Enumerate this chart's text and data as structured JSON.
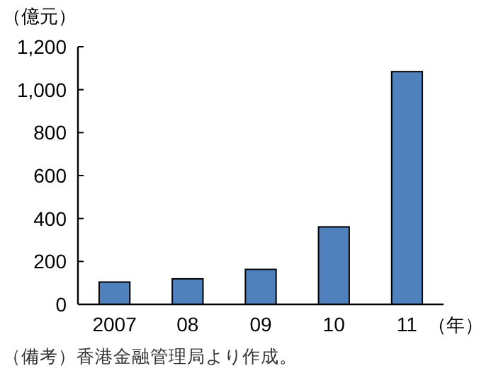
{
  "chart_data": {
    "type": "bar",
    "ylabel": "（億元）",
    "xlabel": "（年）",
    "categories": [
      "2007",
      "08",
      "09",
      "10",
      "11"
    ],
    "values": [
      104,
      119,
      163,
      361,
      1084
    ],
    "color": "#4f81bd",
    "ylim": [
      0,
      1200
    ],
    "yticks": [
      0,
      200,
      400,
      600,
      800,
      {
        "value": 1000,
        "label": "1,000"
      },
      {
        "value": 1200,
        "label": "1,200"
      }
    ],
    "grid": false,
    "annotations": [
      "（備考）香港金融管理局より作成。"
    ]
  }
}
